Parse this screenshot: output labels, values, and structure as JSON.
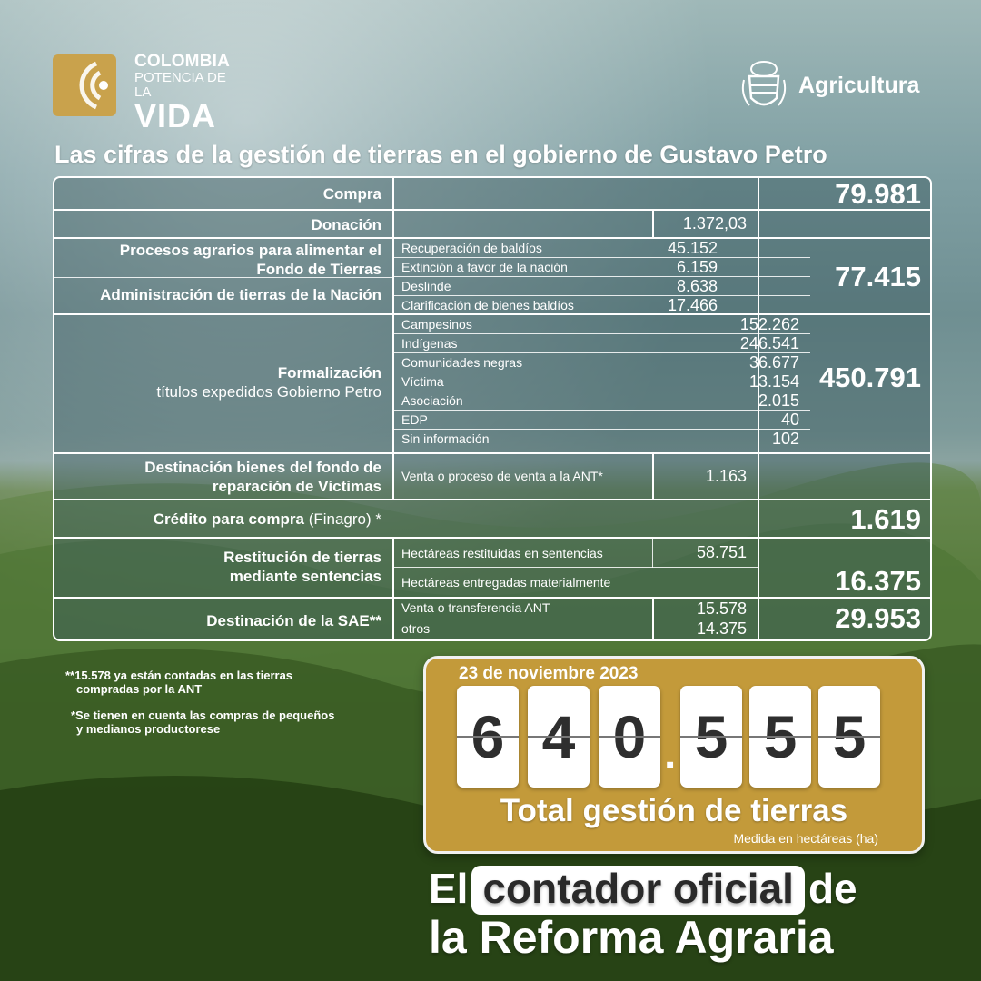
{
  "header": {
    "brand_line1": "COLOMBIA",
    "brand_line2": "POTENCIA DE LA",
    "brand_line3": "VIDA",
    "ministry": "Agricultura"
  },
  "title": "Las cifras de la gestión de tierras en el gobierno de Gustavo Petro",
  "table": {
    "compra": {
      "label": "Compra",
      "total": "79.981"
    },
    "donacion": {
      "label": "Donación",
      "value": "1.372,03"
    },
    "procesos": {
      "label_line1": "Procesos agrarios para alimentar el",
      "label_line2": "Fondo de Tierras",
      "label2": "Administración de tierras de la Nación",
      "items": [
        {
          "label": "Recuperación de baldíos",
          "value": "45.152"
        },
        {
          "label": "Extinción a favor de la nación",
          "value": "6.159"
        },
        {
          "label": "Deslinde",
          "value": "8.638"
        },
        {
          "label": "Clarificación de bienes baldíos",
          "value": "17.466"
        }
      ],
      "total": "77.415"
    },
    "formalizacion": {
      "label": "Formalización",
      "sublabel": "títulos expedidos Gobierno Petro",
      "items": [
        {
          "label": "Campesinos",
          "value": "152.262"
        },
        {
          "label": "Indígenas",
          "value": "246.541"
        },
        {
          "label": "Comunidades negras",
          "value": "36.677"
        },
        {
          "label": "Víctima",
          "value": "13.154"
        },
        {
          "label": "Asociación",
          "value": "2.015"
        },
        {
          "label": "EDP",
          "value": "40"
        },
        {
          "label": "Sin información",
          "value": "102"
        }
      ],
      "total": "450.791"
    },
    "destinacion": {
      "label_line1": "Destinación bienes del fondo de",
      "label_line2": "reparación de Víctimas",
      "item_label": "Venta o proceso de venta a la ANT*",
      "item_value": "1.163"
    },
    "credito": {
      "label": "Crédito para compra",
      "label_note": "(Finagro) *",
      "total": "1.619"
    },
    "restitucion": {
      "label_line1": "Restitución de tierras",
      "label_line2": "mediante sentencias",
      "item1_label": "Hectáreas restituidas en sentencias",
      "item1_value": "58.751",
      "item2_label": "Hectáreas entregadas materialmente",
      "total": "16.375"
    },
    "sae": {
      "label": "Destinación de la SAE**",
      "item1_label": "Venta o transferencia ANT",
      "item1_value": "15.578",
      "item2_label": "otros",
      "item2_value": "14.375",
      "total": "29.953"
    }
  },
  "notes": {
    "note1_line1": "**15.578 ya están contadas en las tierras",
    "note1_line2": "compradas por la ANT",
    "note2_line1": "*Se tienen en cuenta las compras de pequeños",
    "note2_line2": "y medianos productorese"
  },
  "counter": {
    "date": "23 de noviembre 2023",
    "digits": [
      "6",
      "4",
      "0",
      "5",
      "5",
      "5"
    ],
    "separator": ".",
    "label": "Total gestión de tierras",
    "unit": "Medida en hectáreas (ha)"
  },
  "slogan": {
    "word1": "El",
    "highlight": "contador oficial",
    "word2": "de",
    "line2": "la Reforma Agraria"
  },
  "colors": {
    "gold": "#c39a3a",
    "table_bg": "#3c5a5f"
  }
}
